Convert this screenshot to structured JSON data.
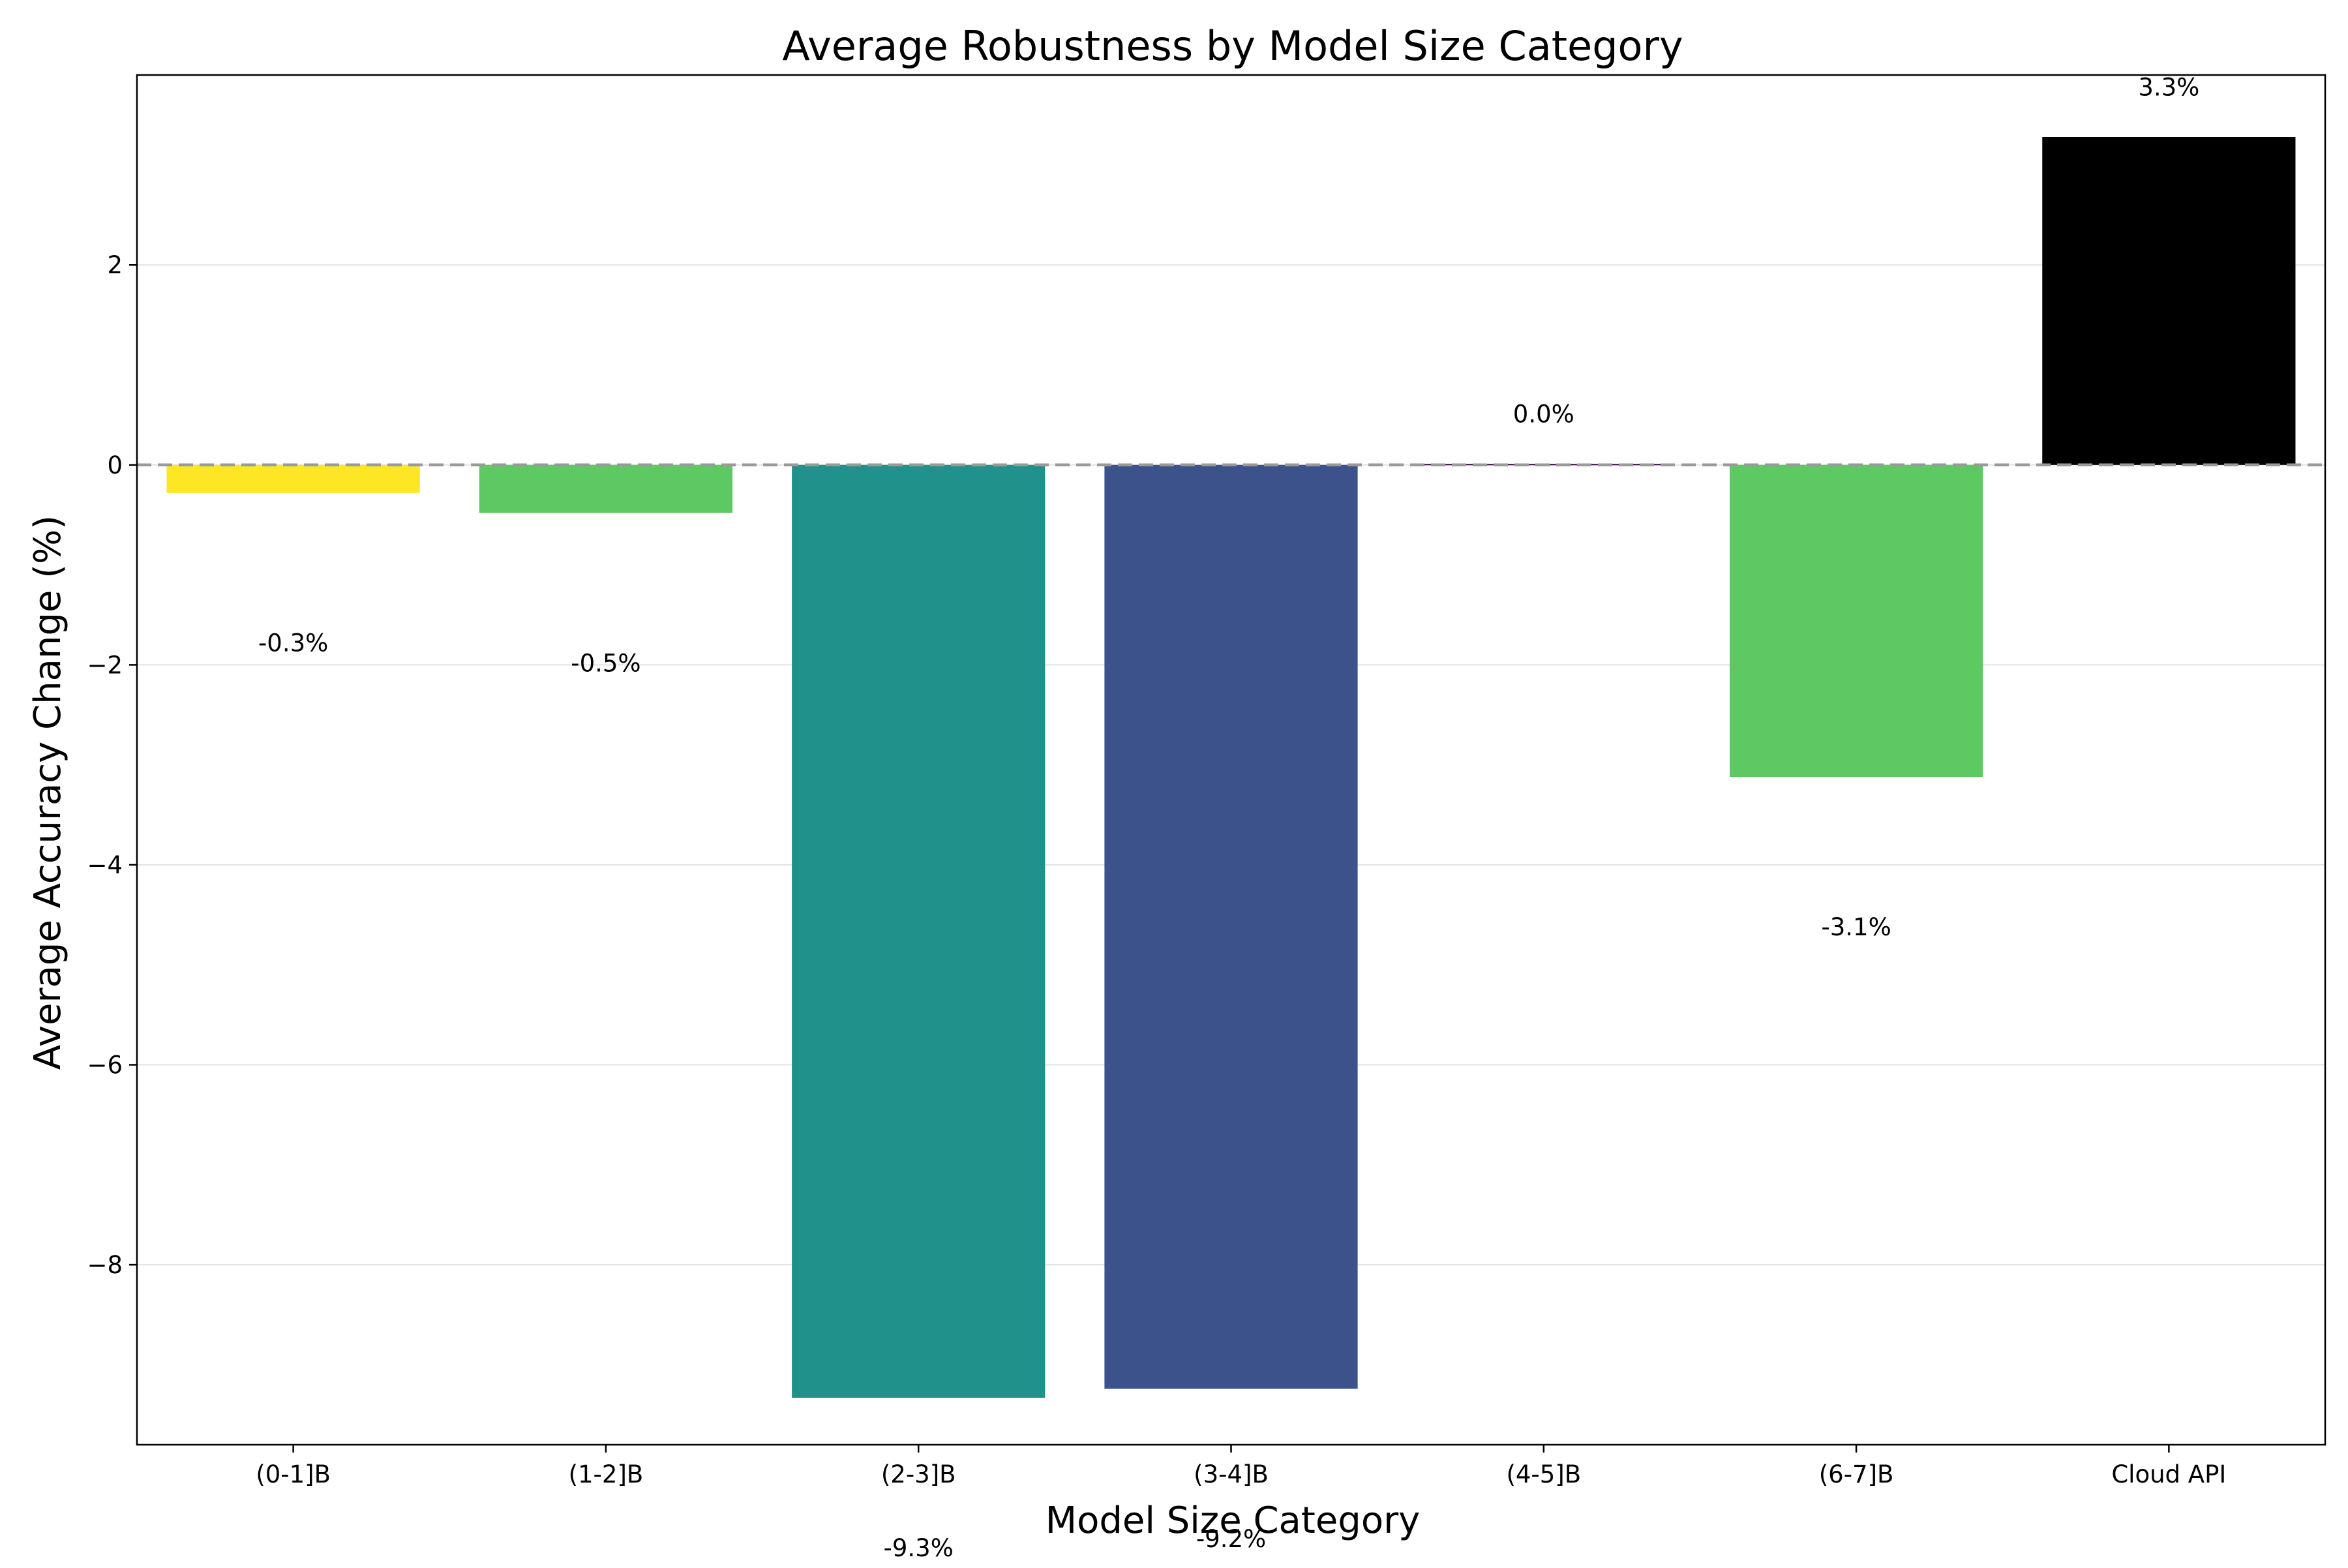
{
  "chart_data": {
    "type": "bar",
    "title": "Average Robustness by Model Size Category",
    "xlabel": "Model Size Category",
    "ylabel": "Average Accuracy Change (%)",
    "categories": [
      "(0-1]B",
      "(1-2]B",
      "(2-3]B",
      "(3-4]B",
      "(4-5]B",
      "(6-7]B",
      "Cloud API"
    ],
    "values": [
      -0.28,
      -0.48,
      -9.33,
      -9.24,
      0.01,
      -3.12,
      3.28
    ],
    "value_labels": [
      "-0.3%",
      "-0.5%",
      "-9.3%",
      "-9.2%",
      "0.0%",
      "-3.1%",
      "3.3%"
    ],
    "colors": [
      "#fde725",
      "#5ec962",
      "#21918c",
      "#3b528b",
      "#440154",
      "#5ec962",
      "#000000"
    ],
    "ylim": [
      -9.8,
      3.9
    ],
    "yticks": [
      -8,
      -6,
      -4,
      -2,
      0,
      2
    ],
    "ytick_labels": [
      "−8",
      "−6",
      "−4",
      "−2",
      "0",
      "2"
    ],
    "grid": "y",
    "reference_line": 0,
    "legend": "none"
  }
}
